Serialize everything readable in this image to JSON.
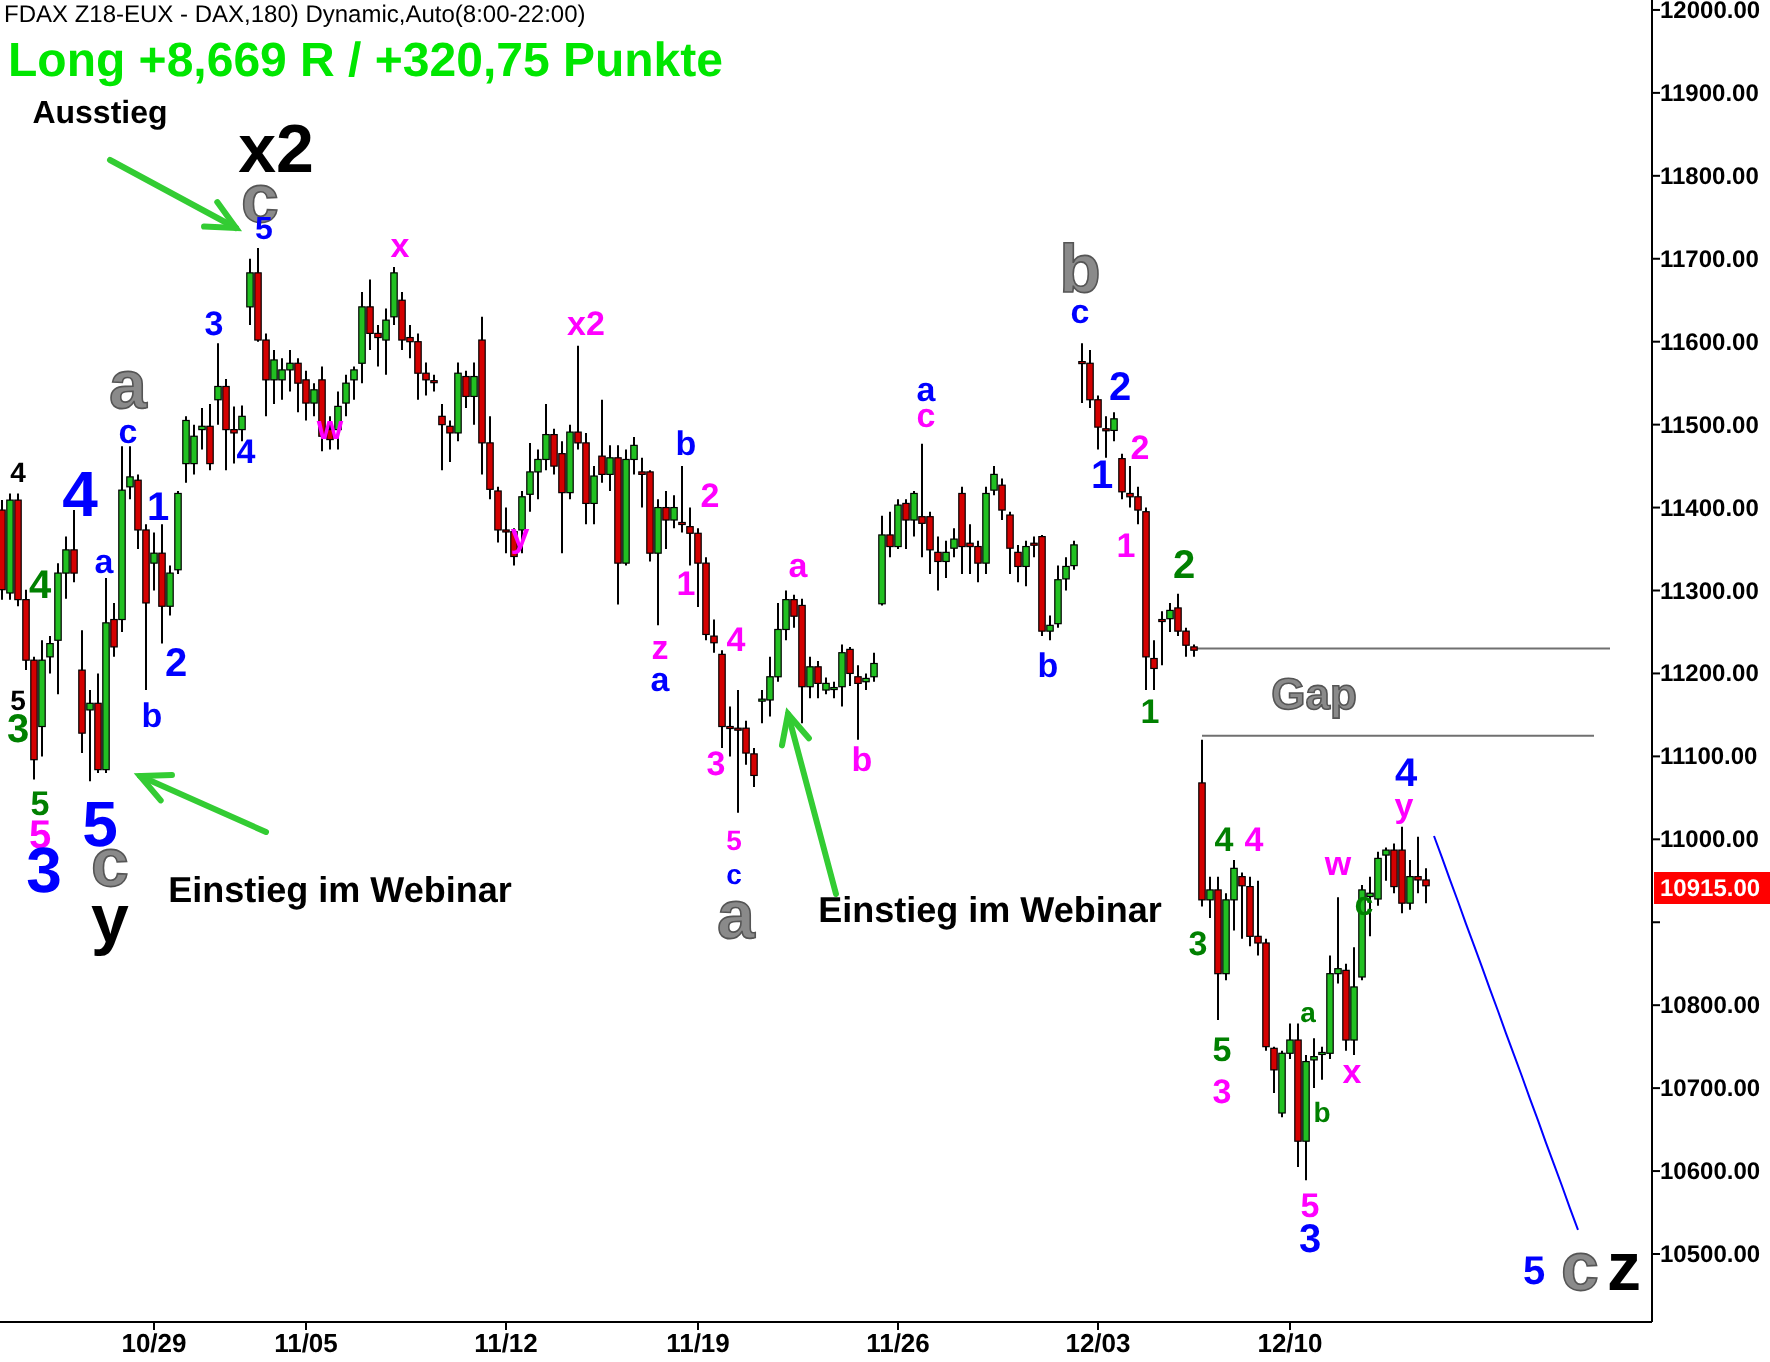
{
  "chart_data": {
    "type": "candlestick",
    "title": "Long +8,669 R / +320,75 Punkte",
    "subtitle": "FDAX Z18-EUX - DAX,180) Dynamic,Auto(8:00-22:00)",
    "categories": [
      null,
      null,
      null,
      null,
      null,
      null,
      null,
      null,
      null,
      null,
      null,
      null,
      null,
      null,
      null,
      null,
      null,
      null,
      null,
      "10/29",
      null,
      null,
      null,
      null,
      null,
      null,
      null,
      null,
      null,
      null,
      null,
      null,
      null,
      null,
      null,
      null,
      null,
      null,
      "11/05",
      null,
      null,
      null,
      null,
      null,
      null,
      null,
      null,
      null,
      null,
      null,
      null,
      null,
      null,
      null,
      null,
      null,
      null,
      null,
      null,
      null,
      null,
      null,
      null,
      "11/12",
      null,
      null,
      null,
      null,
      null,
      null,
      null,
      null,
      null,
      null,
      null,
      null,
      null,
      null,
      null,
      null,
      null,
      null,
      null,
      null,
      null,
      null,
      null,
      "11/19",
      null,
      null,
      null,
      null,
      null,
      null,
      null,
      null,
      null,
      null,
      null,
      null,
      null,
      null,
      null,
      null,
      null,
      null,
      null,
      null,
      null,
      null,
      null,
      null,
      "11/26",
      null,
      null,
      null,
      null,
      null,
      null,
      null,
      null,
      null,
      null,
      null,
      null,
      null,
      null,
      null,
      null,
      null,
      null,
      null,
      null,
      null,
      null,
      null,
      null,
      "12/03",
      null,
      null,
      null,
      null,
      null,
      null,
      null,
      null,
      null,
      null,
      null,
      null,
      null,
      null,
      null,
      null,
      null,
      null,
      null,
      null,
      null,
      null,
      null,
      "12/10",
      null,
      null,
      null,
      null,
      null,
      null,
      null,
      null,
      null,
      null,
      null,
      null,
      null,
      null,
      null,
      null,
      null,
      null,
      null,
      null,
      null,
      null,
      null,
      null,
      null,
      null,
      null,
      null,
      null,
      null,
      null,
      null,
      null,
      null,
      null,
      null,
      null,
      null,
      null,
      null,
      null,
      null,
      null,
      null,
      null
    ],
    "ohlc": [
      [
        11397,
        11409,
        11289,
        11301
      ],
      [
        11297,
        11417,
        11289,
        11409
      ],
      [
        11409,
        11417,
        11281,
        11289
      ],
      [
        11289,
        11301,
        11204,
        11216
      ],
      [
        11216,
        11220,
        11072,
        11096
      ],
      [
        11136,
        11240,
        11100,
        11216
      ],
      [
        11220,
        11245,
        11200,
        11236
      ],
      [
        11240,
        11333,
        11175,
        11321
      ],
      [
        11321,
        11365,
        11290,
        11349
      ],
      [
        11349,
        11397,
        11310,
        11321
      ],
      [
        11204,
        11252,
        11104,
        11128
      ],
      [
        11156,
        11180,
        11070,
        11164
      ],
      [
        11164,
        11200,
        11080,
        11084
      ],
      [
        11084,
        11315,
        11080,
        11261
      ],
      [
        11265,
        11285,
        11220,
        11232
      ],
      [
        11265,
        11474,
        11250,
        11421
      ],
      [
        11425,
        11474,
        11410,
        11437
      ],
      [
        11433,
        11440,
        11350,
        11373
      ],
      [
        11373,
        11380,
        11180,
        11285
      ],
      [
        11333,
        11370,
        11300,
        11345
      ],
      [
        11345,
        11380,
        11236,
        11281
      ],
      [
        11281,
        11330,
        11270,
        11321
      ],
      [
        11325,
        11420,
        11320,
        11417
      ],
      [
        11453,
        11510,
        11430,
        11505
      ],
      [
        11453,
        11500,
        11440,
        11486
      ],
      [
        11494,
        11520,
        11470,
        11498
      ],
      [
        11498,
        11525,
        11445,
        11453
      ],
      [
        11530,
        11598,
        11500,
        11546
      ],
      [
        11546,
        11555,
        11445,
        11494
      ],
      [
        11494,
        11522,
        11453,
        11490
      ],
      [
        11494,
        11523,
        11480,
        11510
      ],
      [
        11642,
        11700,
        11620,
        11683
      ],
      [
        11683,
        11713,
        11600,
        11602
      ],
      [
        11602,
        11610,
        11510,
        11554
      ],
      [
        11554,
        11590,
        11525,
        11578
      ],
      [
        11554,
        11580,
        11530,
        11566
      ],
      [
        11566,
        11590,
        11540,
        11574
      ],
      [
        11574,
        11580,
        11515,
        11550
      ],
      [
        11554,
        11565,
        11505,
        11526
      ],
      [
        11526,
        11550,
        11510,
        11542
      ],
      [
        11554,
        11570,
        11468,
        11486
      ],
      [
        11494,
        11510,
        11470,
        11482
      ],
      [
        11494,
        11540,
        11470,
        11522
      ],
      [
        11526,
        11560,
        11510,
        11550
      ],
      [
        11554,
        11570,
        11530,
        11566
      ],
      [
        11574,
        11660,
        11550,
        11642
      ],
      [
        11642,
        11675,
        11590,
        11610
      ],
      [
        11610,
        11620,
        11570,
        11605
      ],
      [
        11602,
        11640,
        11560,
        11626
      ],
      [
        11630,
        11690,
        11620,
        11683
      ],
      [
        11650,
        11660,
        11590,
        11602
      ],
      [
        11605,
        11620,
        11580,
        11600
      ],
      [
        11600,
        11610,
        11530,
        11562
      ],
      [
        11562,
        11575,
        11535,
        11554
      ],
      [
        11553,
        11560,
        11540,
        11551
      ],
      [
        11510,
        11525,
        11445,
        11500
      ],
      [
        11498,
        11505,
        11455,
        11490
      ],
      [
        11490,
        11575,
        11480,
        11562
      ],
      [
        11558,
        11565,
        11520,
        11534
      ],
      [
        11534,
        11575,
        11500,
        11558
      ],
      [
        11602,
        11630,
        11440,
        11478
      ],
      [
        11478,
        11510,
        11410,
        11422
      ],
      [
        11420,
        11425,
        11358,
        11373
      ],
      [
        11373,
        11400,
        11345,
        11372
      ],
      [
        11371,
        11375,
        11330,
        11341
      ],
      [
        11373,
        11420,
        11345,
        11413
      ],
      [
        11416,
        11478,
        11395,
        11443
      ],
      [
        11443,
        11470,
        11410,
        11458
      ],
      [
        11458,
        11525,
        11445,
        11488
      ],
      [
        11488,
        11495,
        11440,
        11450
      ],
      [
        11465,
        11480,
        11345,
        11418
      ],
      [
        11418,
        11500,
        11410,
        11491
      ],
      [
        11491,
        11595,
        11470,
        11478
      ],
      [
        11478,
        11490,
        11380,
        11405
      ],
      [
        11405,
        11450,
        11380,
        11438
      ],
      [
        11462,
        11530,
        11430,
        11440
      ],
      [
        11440,
        11475,
        11420,
        11460
      ],
      [
        11460,
        11475,
        11283,
        11333
      ],
      [
        11333,
        11470,
        11330,
        11458
      ],
      [
        11458,
        11485,
        11440,
        11475
      ],
      [
        11443,
        11460,
        11400,
        11440
      ],
      [
        11443,
        11445,
        11335,
        11345
      ],
      [
        11345,
        11410,
        11258,
        11400
      ],
      [
        11400,
        11420,
        11350,
        11385
      ],
      [
        11385,
        11415,
        11375,
        11400
      ],
      [
        11382,
        11450,
        11370,
        11381
      ],
      [
        11377,
        11400,
        11330,
        11369
      ],
      [
        11369,
        11375,
        11280,
        11333
      ],
      [
        11333,
        11340,
        11240,
        11247
      ],
      [
        11245,
        11265,
        11225,
        11237
      ],
      [
        11223,
        11228,
        11110,
        11136
      ],
      [
        11136,
        11160,
        11100,
        11134
      ],
      [
        11134,
        11180,
        11032,
        11132
      ],
      [
        11134,
        11143,
        11090,
        11104
      ],
      [
        11103,
        11110,
        11063,
        11077
      ],
      [
        11167,
        11180,
        11140,
        11169
      ],
      [
        11168,
        11220,
        11148,
        11196
      ],
      [
        11196,
        11285,
        11190,
        11253
      ],
      [
        11253,
        11300,
        11240,
        11289
      ],
      [
        11289,
        11295,
        11255,
        11269
      ],
      [
        11282,
        11290,
        11140,
        11184
      ],
      [
        11184,
        11220,
        11170,
        11208
      ],
      [
        11208,
        11215,
        11170,
        11188
      ],
      [
        11180,
        11195,
        11175,
        11188
      ],
      [
        11183,
        11190,
        11170,
        11183
      ],
      [
        11184,
        11235,
        11160,
        11225
      ],
      [
        11229,
        11232,
        11185,
        11200
      ],
      [
        11196,
        11210,
        11120,
        11188
      ],
      [
        11190,
        11200,
        11180,
        11194
      ],
      [
        11196,
        11225,
        11190,
        11212
      ],
      [
        11284,
        11390,
        11282,
        11367
      ],
      [
        11367,
        11395,
        11340,
        11353
      ],
      [
        11353,
        11410,
        11350,
        11403
      ],
      [
        11405,
        11410,
        11350,
        11385
      ],
      [
        11385,
        11420,
        11365,
        11417
      ],
      [
        11389,
        11477,
        11340,
        11381
      ],
      [
        11389,
        11395,
        11320,
        11349
      ],
      [
        11346,
        11365,
        11300,
        11335
      ],
      [
        11335,
        11360,
        11315,
        11346
      ],
      [
        11351,
        11375,
        11340,
        11362
      ],
      [
        11417,
        11425,
        11320,
        11353
      ],
      [
        11357,
        11380,
        11320,
        11353
      ],
      [
        11353,
        11360,
        11310,
        11333
      ],
      [
        11333,
        11425,
        11320,
        11417
      ],
      [
        11421,
        11450,
        11415,
        11440
      ],
      [
        11427,
        11435,
        11385,
        11397
      ],
      [
        11391,
        11395,
        11320,
        11351
      ],
      [
        11346,
        11355,
        11310,
        11329
      ],
      [
        11329,
        11360,
        11305,
        11353
      ],
      [
        11357,
        11365,
        11340,
        11356
      ],
      [
        11365,
        11367,
        11245,
        11251
      ],
      [
        11251,
        11270,
        11240,
        11258
      ],
      [
        11260,
        11330,
        11255,
        11313
      ],
      [
        11314,
        11340,
        11300,
        11329
      ],
      [
        11330,
        11360,
        11325,
        11355
      ],
      [
        11576,
        11598,
        11526,
        11575
      ],
      [
        11574,
        11590,
        11520,
        11530
      ],
      [
        11530,
        11535,
        11470,
        11497
      ],
      [
        11495,
        11510,
        11460,
        11494
      ],
      [
        11493,
        11515,
        11480,
        11507
      ],
      [
        11459,
        11465,
        11410,
        11419
      ],
      [
        11417,
        11450,
        11400,
        11413
      ],
      [
        11413,
        11425,
        11380,
        11397
      ],
      [
        11395,
        11400,
        11180,
        11220
      ],
      [
        11218,
        11240,
        11180,
        11206
      ],
      [
        11265,
        11275,
        11210,
        11264
      ],
      [
        11266,
        11285,
        11250,
        11276
      ],
      [
        11279,
        11296,
        11245,
        11251
      ],
      [
        11251,
        11255,
        11220,
        11234
      ],
      [
        11232,
        11235,
        11220,
        11228
      ],
      [
        11068,
        11120,
        10919,
        10927
      ],
      [
        10927,
        10955,
        10905,
        10939
      ],
      [
        10939,
        10955,
        10782,
        10838
      ],
      [
        10838,
        10935,
        10830,
        10927
      ],
      [
        10927,
        10975,
        10890,
        10965
      ],
      [
        10955,
        10960,
        10880,
        10944
      ],
      [
        10943,
        10955,
        10871,
        10883
      ],
      [
        10883,
        10950,
        10860,
        10875
      ],
      [
        10875,
        10880,
        10745,
        10750
      ],
      [
        10748,
        10750,
        10694,
        10722
      ],
      [
        10670,
        10745,
        10665,
        10742
      ],
      [
        10742,
        10778,
        10735,
        10758
      ],
      [
        10758,
        10778,
        10605,
        10636
      ],
      [
        10636,
        10740,
        10589,
        10732
      ],
      [
        10734,
        10760,
        10700,
        10738
      ],
      [
        10742,
        10750,
        10710,
        10743
      ],
      [
        10742,
        10860,
        10735,
        10838
      ],
      [
        10838,
        10930,
        10826,
        10844
      ],
      [
        10842,
        10850,
        10745,
        10758
      ],
      [
        10758,
        10870,
        10740,
        10822
      ],
      [
        10834,
        10945,
        10830,
        10939
      ],
      [
        10931,
        10955,
        10883,
        10935
      ],
      [
        10928,
        10985,
        10920,
        10977
      ],
      [
        10981,
        10990,
        10950,
        10987
      ],
      [
        10987,
        10995,
        10935,
        10943
      ],
      [
        10987,
        11015,
        10911,
        10923
      ],
      [
        10923,
        10975,
        10915,
        10955
      ],
      [
        10955,
        11003,
        10935,
        10951
      ],
      [
        10951,
        10965,
        10923,
        10944
      ],
      null,
      null,
      null,
      null,
      null,
      null,
      null,
      null,
      null,
      null,
      null,
      null,
      null,
      null,
      null,
      null,
      null,
      null,
      null,
      null,
      null,
      null,
      null,
      null,
      null,
      null,
      null,
      null
    ],
    "series": [
      {
        "type": "line",
        "color": "#707070",
        "values": [
          null,
          null,
          null,
          null,
          null,
          null,
          null,
          null,
          null,
          null,
          null,
          null,
          null,
          null,
          null,
          null,
          null,
          null,
          null,
          null,
          null,
          null,
          null,
          null,
          null,
          null,
          null,
          null,
          null,
          null,
          null,
          null,
          null,
          null,
          null,
          null,
          null,
          null,
          null,
          null,
          null,
          null,
          null,
          null,
          null,
          null,
          null,
          null,
          null,
          null,
          null,
          null,
          null,
          null,
          null,
          null,
          null,
          null,
          null,
          null,
          null,
          null,
          null,
          null,
          null,
          null,
          null,
          null,
          null,
          null,
          null,
          null,
          null,
          null,
          null,
          null,
          null,
          null,
          null,
          null,
          null,
          null,
          null,
          null,
          null,
          null,
          null,
          null,
          null,
          null,
          null,
          null,
          null,
          null,
          null,
          null,
          null,
          null,
          null,
          null,
          null,
          null,
          null,
          null,
          null,
          null,
          null,
          null,
          null,
          null,
          null,
          null,
          null,
          null,
          null,
          null,
          null,
          null,
          null,
          null,
          null,
          null,
          null,
          null,
          null,
          null,
          null,
          null,
          null,
          null,
          null,
          null,
          null,
          null,
          null,
          null,
          null,
          null,
          null,
          null,
          null,
          null,
          null,
          null,
          null,
          null,
          null,
          null,
          null,
          11230,
          11230,
          11230,
          11230,
          11230,
          11230,
          11230,
          11230,
          11230,
          11230,
          11230,
          11230,
          11230,
          11230,
          11230,
          11230,
          11230,
          11230,
          11230,
          11230,
          11230,
          11230,
          11230,
          11230,
          11230,
          11230,
          11230,
          11230,
          11230,
          11230,
          11230,
          11230,
          11230,
          11230,
          11230,
          11230,
          11230,
          11230,
          11230,
          11230,
          11230,
          11230,
          11230,
          11230,
          11230,
          11230,
          11230,
          11230,
          11230,
          11230,
          11230,
          11230,
          11230,
          null,
          null,
          null,
          null,
          null
        ]
      },
      {
        "type": "line",
        "color": "#707070",
        "values": [
          null,
          null,
          null,
          null,
          null,
          null,
          null,
          null,
          null,
          null,
          null,
          null,
          null,
          null,
          null,
          null,
          null,
          null,
          null,
          null,
          null,
          null,
          null,
          null,
          null,
          null,
          null,
          null,
          null,
          null,
          null,
          null,
          null,
          null,
          null,
          null,
          null,
          null,
          null,
          null,
          null,
          null,
          null,
          null,
          null,
          null,
          null,
          null,
          null,
          null,
          null,
          null,
          null,
          null,
          null,
          null,
          null,
          null,
          null,
          null,
          null,
          null,
          null,
          null,
          null,
          null,
          null,
          null,
          null,
          null,
          null,
          null,
          null,
          null,
          null,
          null,
          null,
          null,
          null,
          null,
          null,
          null,
          null,
          null,
          null,
          null,
          null,
          null,
          null,
          null,
          null,
          null,
          null,
          null,
          null,
          null,
          null,
          null,
          null,
          null,
          null,
          null,
          null,
          null,
          null,
          null,
          null,
          null,
          null,
          null,
          null,
          null,
          null,
          null,
          null,
          null,
          null,
          null,
          null,
          null,
          null,
          null,
          null,
          null,
          null,
          null,
          null,
          null,
          null,
          null,
          null,
          null,
          null,
          null,
          null,
          null,
          null,
          null,
          null,
          null,
          null,
          null,
          null,
          null,
          null,
          null,
          null,
          null,
          null,
          null,
          11125,
          11125,
          11125,
          11125,
          11125,
          11125,
          11125,
          11125,
          11125,
          11125,
          11125,
          11125,
          11125,
          11125,
          11125,
          11125,
          11125,
          11125,
          11125,
          11125,
          11125,
          11125,
          11125,
          11125,
          11125,
          11125,
          11125,
          11125,
          11125,
          11125,
          11125,
          11125,
          11125,
          11125,
          11125,
          11125,
          11125,
          11125,
          11125,
          11125,
          11125,
          11125,
          11125,
          11125,
          11125,
          11125,
          11125,
          11125,
          11125,
          11125,
          null,
          null,
          null,
          null,
          null,
          null,
          null
        ]
      },
      {
        "type": "line",
        "color": "#0000ff",
        "values": [
          null,
          null,
          null,
          null,
          null,
          null,
          null,
          null,
          null,
          null,
          null,
          null,
          null,
          null,
          null,
          null,
          null,
          null,
          null,
          null,
          null,
          null,
          null,
          null,
          null,
          null,
          null,
          null,
          null,
          null,
          null,
          null,
          null,
          null,
          null,
          null,
          null,
          null,
          null,
          null,
          null,
          null,
          null,
          null,
          null,
          null,
          null,
          null,
          null,
          null,
          null,
          null,
          null,
          null,
          null,
          null,
          null,
          null,
          null,
          null,
          null,
          null,
          null,
          null,
          null,
          null,
          null,
          null,
          null,
          null,
          null,
          null,
          null,
          null,
          null,
          null,
          null,
          null,
          null,
          null,
          null,
          null,
          null,
          null,
          null,
          null,
          null,
          null,
          null,
          null,
          null,
          null,
          null,
          null,
          null,
          null,
          null,
          null,
          null,
          null,
          null,
          null,
          null,
          null,
          null,
          null,
          null,
          null,
          null,
          null,
          null,
          null,
          null,
          null,
          null,
          null,
          null,
          null,
          null,
          null,
          null,
          null,
          null,
          null,
          null,
          null,
          null,
          null,
          null,
          null,
          null,
          null,
          null,
          null,
          null,
          null,
          null,
          null,
          null,
          null,
          null,
          null,
          null,
          null,
          null,
          null,
          null,
          null,
          null,
          null,
          null,
          null,
          null,
          null,
          null,
          null,
          null,
          null,
          null,
          null,
          null,
          null,
          null,
          null,
          null,
          null,
          null,
          null,
          null,
          null,
          null,
          null,
          null,
          null,
          null,
          null,
          null,
          null,
          null,
          11004,
          10978,
          10951,
          10925,
          10898,
          10872,
          10846,
          10819,
          10793,
          10766,
          10740,
          10714,
          10687,
          10661,
          10634,
          10608,
          10582,
          10555,
          10529,
          null,
          null,
          null,
          null,
          null,
          null,
          null,
          null,
          null
        ]
      }
    ],
    "ylim": [
      10418,
      12012
    ],
    "yticks": [
      {
        "value": 10500,
        "label": "10500.00"
      },
      {
        "value": 10600,
        "label": "10600.00"
      },
      {
        "value": 10700,
        "label": "10700.00"
      },
      {
        "value": 10800,
        "label": "10800.00"
      },
      {
        "value": 10900,
        "label": null
      },
      {
        "value": 11000,
        "label": "11000.00"
      },
      {
        "value": 11100,
        "label": "11100.00"
      },
      {
        "value": 11200,
        "label": "11200.00"
      },
      {
        "value": 11300,
        "label": "11300.00"
      },
      {
        "value": 11400,
        "label": "11400.00"
      },
      {
        "value": 11500,
        "label": "11500.00"
      },
      {
        "value": 11600,
        "label": "11600.00"
      },
      {
        "value": 11700,
        "label": "11700.00"
      },
      {
        "value": 11800,
        "label": "11800.00"
      },
      {
        "value": 11900,
        "label": "11900.00"
      },
      {
        "value": 12000,
        "label": "12000.00"
      }
    ],
    "grid": false,
    "annotations": [
      "Ausstieg",
      "x2",
      "c",
      "5",
      "x",
      "3",
      "w",
      "4",
      "a",
      "c",
      "1",
      "4",
      "4",
      "a",
      "4",
      "2",
      "b",
      "5",
      "3",
      "5",
      "5",
      "3",
      "5",
      "c",
      "y",
      "Einstieg im Webinar",
      "x2",
      "y",
      "b",
      "2",
      "1",
      "z",
      "a",
      "4",
      "3",
      "5",
      "c",
      "a",
      "a",
      "b",
      "Einstieg im Webinar",
      "a",
      "c",
      "b",
      "c",
      "2",
      "1",
      "2",
      "1",
      "b",
      "2",
      "1",
      "Gap",
      "4",
      "4",
      "3",
      "5",
      "3",
      "w",
      "c",
      "a",
      "b",
      "x",
      "4",
      "y",
      "5",
      "3",
      "5",
      "c",
      "z",
      "10915.00"
    ]
  }
}
